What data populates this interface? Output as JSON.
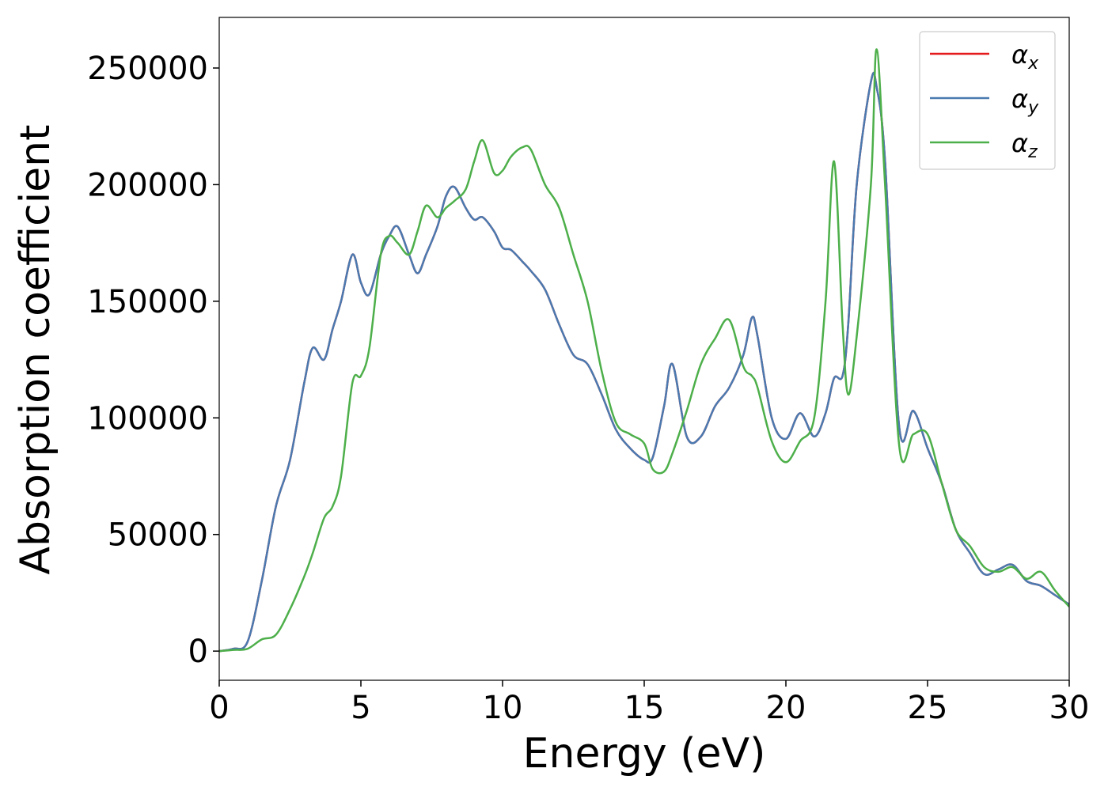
{
  "chart_data": {
    "type": "line",
    "xlabel": "Energy (eV)",
    "ylabel": "Absorption coefficient",
    "x": [
      0,
      0.5,
      1,
      1.5,
      2,
      2.5,
      3,
      3.3,
      3.7,
      4,
      4.3,
      4.7,
      5,
      5.3,
      5.7,
      6,
      6.3,
      6.7,
      7,
      7.3,
      7.7,
      8,
      8.3,
      8.7,
      9,
      9.3,
      9.7,
      10,
      10.3,
      10.7,
      11,
      11.5,
      12,
      12.5,
      13,
      13.5,
      14,
      14.5,
      15,
      15.3,
      15.7,
      16,
      16.5,
      17,
      17.5,
      18,
      18.5,
      18.8,
      19,
      19.5,
      20,
      20.5,
      21,
      21.4,
      21.7,
      22,
      22.2,
      22.5,
      23,
      23.2,
      23.5,
      24,
      24.5,
      25,
      25.5,
      26,
      26.5,
      27,
      27.5,
      28,
      28.5,
      29,
      29.5,
      30
    ],
    "series": [
      {
        "name": "αx",
        "color": "#e41a1c",
        "values": [
          0,
          1000,
          4000,
          30000,
          62000,
          82000,
          115000,
          130000,
          125000,
          138000,
          150000,
          170000,
          158000,
          153000,
          170000,
          178000,
          182000,
          170000,
          162000,
          170000,
          182000,
          195000,
          199000,
          190000,
          185000,
          186000,
          180000,
          173000,
          172000,
          167000,
          163000,
          155000,
          140000,
          127000,
          123000,
          110000,
          95000,
          87000,
          82000,
          83000,
          105000,
          123000,
          92000,
          92000,
          105000,
          113000,
          127000,
          143000,
          135000,
          100000,
          91000,
          102000,
          92000,
          102000,
          117000,
          118000,
          140000,
          200000,
          244000,
          242000,
          210000,
          96000,
          103000,
          87000,
          72000,
          52000,
          42000,
          33000,
          35000,
          37000,
          30000,
          28000,
          24000,
          20000
        ]
      },
      {
        "name": "αy",
        "color": "#4a7ab0",
        "values": [
          0,
          1000,
          4000,
          30000,
          62000,
          82000,
          115000,
          130000,
          125000,
          138000,
          150000,
          170000,
          158000,
          153000,
          170000,
          178000,
          182000,
          170000,
          162000,
          170000,
          182000,
          195000,
          199000,
          190000,
          185000,
          186000,
          180000,
          173000,
          172000,
          167000,
          163000,
          155000,
          140000,
          127000,
          123000,
          110000,
          95000,
          87000,
          82000,
          83000,
          105000,
          123000,
          92000,
          92000,
          105000,
          113000,
          127000,
          143000,
          135000,
          100000,
          91000,
          102000,
          92000,
          102000,
          117000,
          118000,
          140000,
          200000,
          244000,
          242000,
          210000,
          96000,
          103000,
          87000,
          72000,
          52000,
          42000,
          33000,
          35000,
          37000,
          30000,
          28000,
          24000,
          20000
        ]
      },
      {
        "name": "αz",
        "color": "#4daf4a",
        "values": [
          0,
          500,
          1000,
          5000,
          7000,
          18000,
          32000,
          42000,
          57000,
          62000,
          75000,
          115000,
          118000,
          130000,
          170000,
          178000,
          175000,
          170000,
          180000,
          191000,
          186000,
          190000,
          193000,
          198000,
          210000,
          219000,
          205000,
          206000,
          212000,
          216000,
          215000,
          200000,
          190000,
          170000,
          150000,
          120000,
          98000,
          93000,
          89000,
          78000,
          77000,
          85000,
          103000,
          123000,
          134000,
          142000,
          122000,
          118000,
          113000,
          90000,
          81000,
          90000,
          100000,
          150000,
          210000,
          140000,
          110000,
          135000,
          200000,
          258000,
          200000,
          88000,
          93000,
          93000,
          72000,
          52000,
          45000,
          36000,
          34000,
          36000,
          31000,
          34000,
          26000,
          19000
        ]
      }
    ],
    "xlim": [
      0,
      30
    ],
    "xticks": [
      0,
      5,
      10,
      15,
      20,
      25,
      30
    ],
    "ylim": [
      -12500,
      271700
    ],
    "yticks": [
      0,
      50000,
      100000,
      150000,
      200000,
      250000
    ],
    "grid": false,
    "legend": "upper right"
  }
}
